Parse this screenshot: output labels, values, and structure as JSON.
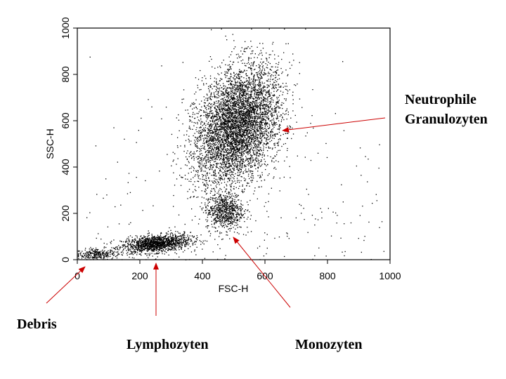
{
  "chart_data": {
    "type": "scatter",
    "title": "",
    "xlabel": "FSC-H",
    "ylabel": "SSC-H",
    "xlim": [
      0,
      1000
    ],
    "ylim": [
      0,
      1000
    ],
    "xticks": [
      "0",
      "200",
      "400",
      "600",
      "800",
      "1000"
    ],
    "yticks": [
      "0",
      "200",
      "400",
      "600",
      "800",
      "1000"
    ],
    "grid": false,
    "legend": "none",
    "point_color": "#000000",
    "annotation_color": "#cc0000",
    "populations": [
      {
        "label": "Debris",
        "center": [
          60,
          25
        ],
        "spread": [
          30,
          12
        ]
      },
      {
        "label": "Lymphozyten",
        "center": [
          250,
          70
        ],
        "spread": [
          55,
          18
        ]
      },
      {
        "label": "Monozyten",
        "center": [
          470,
          210
        ],
        "spread": [
          30,
          40
        ]
      },
      {
        "label": "Neutrophile Granulozyten",
        "center": [
          510,
          580
        ],
        "spread": [
          65,
          130
        ]
      }
    ],
    "annotations": [
      {
        "line1": "Neutrophile",
        "line2": "Granulozyten",
        "point_to": [
          670,
          570
        ]
      },
      {
        "line1": "Debris",
        "line2": "",
        "point_to": [
          30,
          0
        ]
      },
      {
        "line1": "Lymphozyten",
        "line2": "",
        "point_to": [
          260,
          10
        ]
      },
      {
        "line1": "Monozyten",
        "line2": "",
        "point_to": [
          510,
          100
        ]
      }
    ]
  }
}
